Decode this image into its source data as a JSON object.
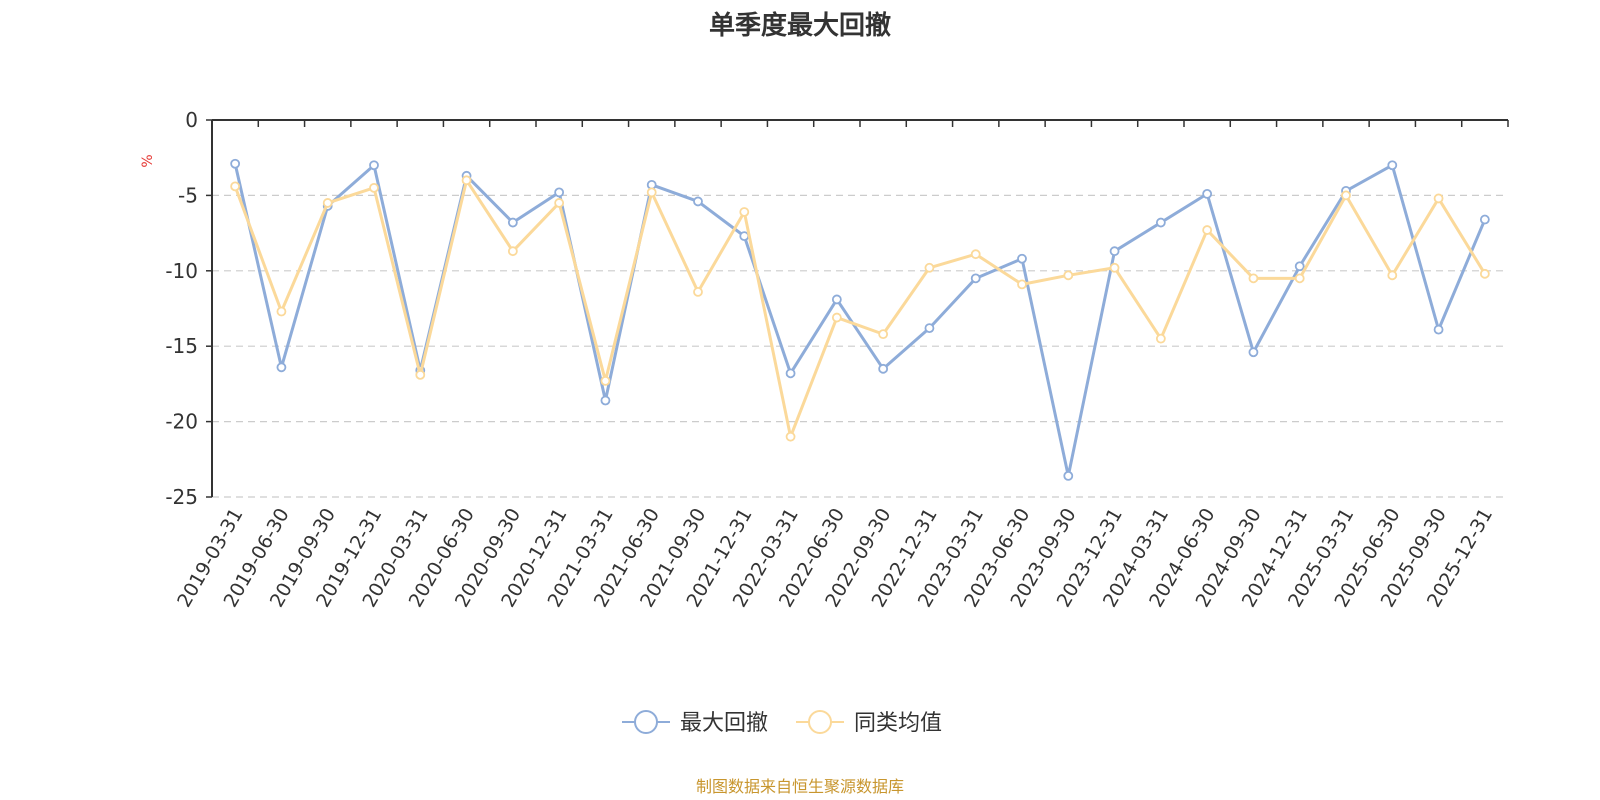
{
  "chart_data": {
    "type": "line",
    "title": "单季度最大回撤",
    "ylabel": "%",
    "ylim": [
      -25,
      0
    ],
    "yticks": [
      0,
      -5,
      -10,
      -15,
      -20,
      -25
    ],
    "categories": [
      "2019-03-31",
      "2019-06-30",
      "2019-09-30",
      "2019-12-31",
      "2020-03-31",
      "2020-06-30",
      "2020-09-30",
      "2020-12-31",
      "2021-03-31",
      "2021-06-30",
      "2021-09-30",
      "2021-12-31",
      "2022-03-31",
      "2022-06-30",
      "2022-09-30",
      "2022-12-31",
      "2023-03-31",
      "2023-06-30",
      "2023-09-30",
      "2023-12-31",
      "2024-03-31",
      "2024-06-30",
      "2024-09-30",
      "2024-12-31",
      "2025-03-31",
      "2025-06-30",
      "2025-09-30",
      "2025-12-31"
    ],
    "series": [
      {
        "name": "最大回撤",
        "color": "#8eacd9",
        "values": [
          -2.9,
          -16.4,
          -5.7,
          -3.0,
          -16.6,
          -3.7,
          -6.8,
          -4.8,
          -18.6,
          -4.3,
          -5.4,
          -7.7,
          -16.8,
          -11.9,
          -16.5,
          -13.8,
          -10.5,
          -9.2,
          -23.6,
          -8.7,
          -6.8,
          -4.9,
          -15.4,
          -9.7,
          -4.7,
          -3.0,
          -13.9,
          -6.6
        ]
      },
      {
        "name": "同类均值",
        "color": "#fbd99a",
        "values": [
          -4.4,
          -12.7,
          -5.5,
          -4.5,
          -16.9,
          -4.0,
          -8.7,
          -5.5,
          -17.3,
          -4.8,
          -11.4,
          -6.1,
          -21.0,
          -13.1,
          -14.2,
          -9.8,
          -8.9,
          -10.9,
          -10.3,
          -9.8,
          -14.5,
          -7.3,
          -10.5,
          -10.5,
          -5.0,
          -10.3,
          -5.2,
          -10.2
        ]
      }
    ],
    "legend": [
      "最大回撤",
      "同类均值"
    ],
    "legend_position": "bottom-center",
    "grid": true,
    "source": "制图数据来自恒生聚源数据库"
  }
}
